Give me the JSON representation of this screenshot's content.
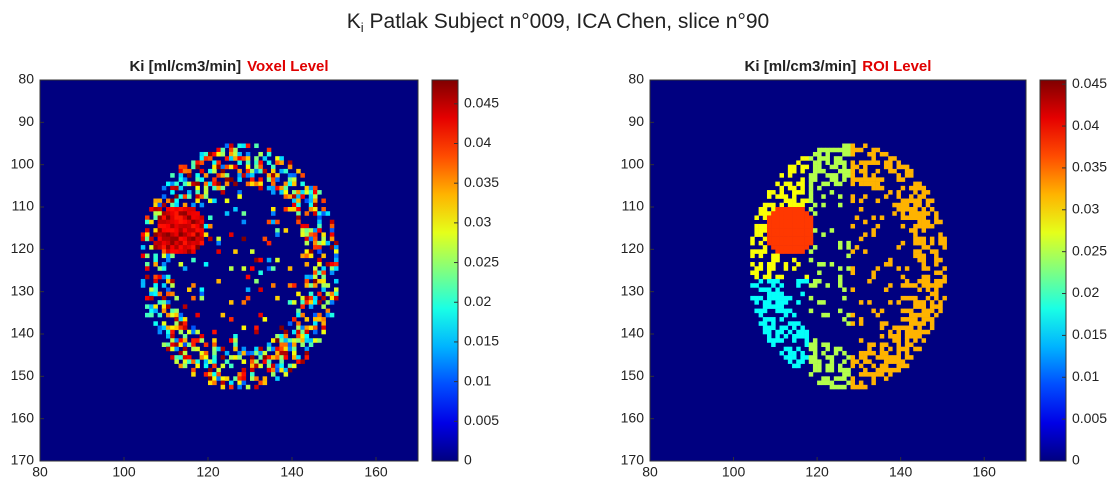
{
  "chart_data": [
    {
      "type": "heatmap",
      "figure_title": {
        "main": "K",
        "subscript": "i",
        "rest": " Patlak Subject n°009, ICA Chen, slice n°90"
      },
      "title": {
        "quantity": "Ki [ml/cm3/min]",
        "level": "Voxel Level"
      },
      "xlim": [
        80,
        170
      ],
      "xticks": [
        80,
        100,
        120,
        140,
        160
      ],
      "ylim": [
        80,
        170
      ],
      "yticks": [
        80,
        90,
        100,
        110,
        120,
        130,
        140,
        150,
        160,
        170
      ],
      "clim": [
        0,
        0.048
      ],
      "cticks": [
        0,
        0.005,
        0.01,
        0.015,
        0.02,
        0.025,
        0.03,
        0.035,
        0.04,
        0.045
      ],
      "colormap": "jet"
    },
    {
      "type": "heatmap",
      "title": {
        "quantity": "Ki [ml/cm3/min]",
        "level": "ROI Level"
      },
      "xlim": [
        80,
        170
      ],
      "xticks": [
        80,
        100,
        120,
        140,
        160
      ],
      "ylim": [
        80,
        170
      ],
      "yticks": [
        80,
        90,
        100,
        110,
        120,
        130,
        140,
        150,
        160,
        170
      ],
      "clim": [
        0,
        0.0455
      ],
      "cticks": [
        0,
        0.005,
        0.01,
        0.015,
        0.02,
        0.025,
        0.03,
        0.035,
        0.04,
        0.045
      ],
      "colormap": "jet"
    }
  ]
}
